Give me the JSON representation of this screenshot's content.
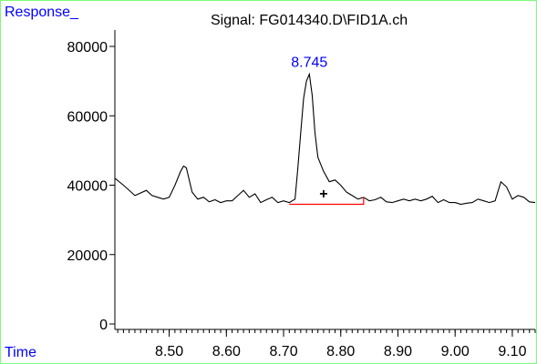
{
  "chart_data": {
    "type": "line",
    "title": "Signal: FG014340.D\\FID1A.ch",
    "ylabel": "Response_",
    "xlabel": "Time",
    "xlim": [
      8.405,
      9.14
    ],
    "ylim": [
      0,
      88000
    ],
    "x_ticks": [
      "8.50",
      "8.60",
      "8.70",
      "8.80",
      "8.90",
      "9.00",
      "9.10"
    ],
    "y_ticks": [
      "0",
      "20000",
      "40000",
      "60000",
      "80000"
    ],
    "grid": false,
    "peak_label": "8.745",
    "peak_marker": "+",
    "colors": {
      "trace": "#000000",
      "baseline": "#ff0000",
      "axis_title": "#0000ff",
      "peak_label": "#0000ff",
      "frame": "#7cfc7c"
    },
    "baseline": {
      "x": [
        8.71,
        8.84
      ],
      "y": 34500
    },
    "series": [
      {
        "x": [
          8.405,
          8.42,
          8.44,
          8.46,
          8.47,
          8.48,
          8.49,
          8.5,
          8.51,
          8.52,
          8.525,
          8.53,
          8.54,
          8.55,
          8.56,
          8.57,
          8.58,
          8.59,
          8.6,
          8.61,
          8.62,
          8.63,
          8.64,
          8.65,
          8.66,
          8.67,
          8.68,
          8.69,
          8.7,
          8.71,
          8.72,
          8.725,
          8.73,
          8.735,
          8.74,
          8.745,
          8.75,
          8.755,
          8.76,
          8.77,
          8.78,
          8.79,
          8.8,
          8.81,
          8.82,
          8.83,
          8.84,
          8.85,
          8.86,
          8.87,
          8.88,
          8.89,
          8.9,
          8.91,
          8.92,
          8.93,
          8.94,
          8.95,
          8.96,
          8.97,
          8.98,
          8.99,
          9.0,
          9.01,
          9.02,
          9.03,
          9.04,
          9.05,
          9.06,
          9.07,
          9.08,
          9.09,
          9.1,
          9.11,
          9.12,
          9.13,
          9.14
        ],
        "y": [
          42000,
          40000,
          37000,
          38500,
          37000,
          36500,
          36000,
          36500,
          40000,
          44000,
          45500,
          45000,
          38000,
          36000,
          36500,
          35200,
          35800,
          35000,
          35500,
          35500,
          37000,
          38500,
          36500,
          37500,
          35000,
          35800,
          36500,
          35000,
          35500,
          35000,
          36000,
          45000,
          55000,
          65000,
          70000,
          72000,
          66000,
          55000,
          48000,
          44000,
          41000,
          41500,
          40000,
          38000,
          37000,
          36000,
          36500,
          35500,
          35800,
          36500,
          35200,
          35000,
          35500,
          36000,
          35500,
          36000,
          35500,
          36000,
          36800,
          35000,
          35800,
          35000,
          35000,
          34500,
          34800,
          35000,
          36000,
          35500,
          35000,
          35500,
          41000,
          39500,
          36000,
          37000,
          36500,
          35200,
          35000
        ]
      }
    ]
  }
}
